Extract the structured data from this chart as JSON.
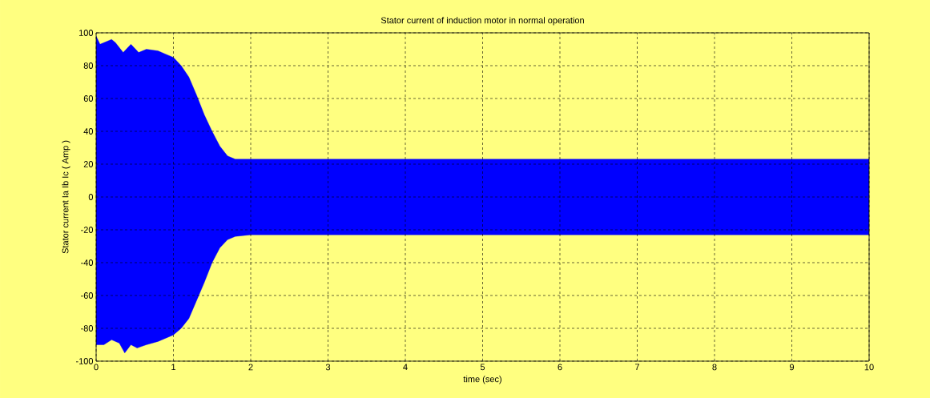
{
  "chart_data": {
    "type": "area",
    "title": "Stator current of induction motor in normal operation",
    "xlabel": "time (sec)",
    "ylabel": "Stator current Ia Ib Ic ( Amp )",
    "series": [
      {
        "color": "#0000ff",
        "x": [
          0,
          0.05,
          0.1,
          0.2,
          0.25,
          0.35,
          0.45,
          0.55,
          0.65,
          0.8,
          0.9,
          1.0,
          1.1,
          1.2,
          1.3,
          1.4,
          1.5,
          1.6,
          1.7,
          1.8,
          2.0,
          10
        ],
        "values": [
          98,
          93,
          94,
          96,
          94,
          88,
          93,
          88,
          90,
          89,
          87,
          85,
          80,
          73,
          62,
          50,
          40,
          31,
          25,
          23,
          23,
          23
        ]
      },
      {
        "color": "#0000ff",
        "x": [
          0,
          0.1,
          0.2,
          0.3,
          0.37,
          0.45,
          0.53,
          0.65,
          0.8,
          1.0,
          1.1,
          1.2,
          1.3,
          1.4,
          1.5,
          1.6,
          1.7,
          1.8,
          2.0,
          10
        ],
        "values": [
          -90,
          -90,
          -87,
          -89,
          -95,
          -90,
          -92,
          -90,
          -88,
          -84,
          -80,
          -74,
          -63,
          -52,
          -40,
          -31,
          -26,
          -24,
          -23,
          -23
        ]
      }
    ],
    "xlim": [
      0,
      10
    ],
    "ylim": [
      -100,
      100
    ],
    "xticks": [
      0,
      1,
      2,
      3,
      4,
      5,
      6,
      7,
      8,
      9,
      10
    ],
    "yticks": [
      -100,
      -80,
      -60,
      -40,
      -20,
      0,
      20,
      40,
      60,
      80,
      100
    ],
    "grid": true
  }
}
